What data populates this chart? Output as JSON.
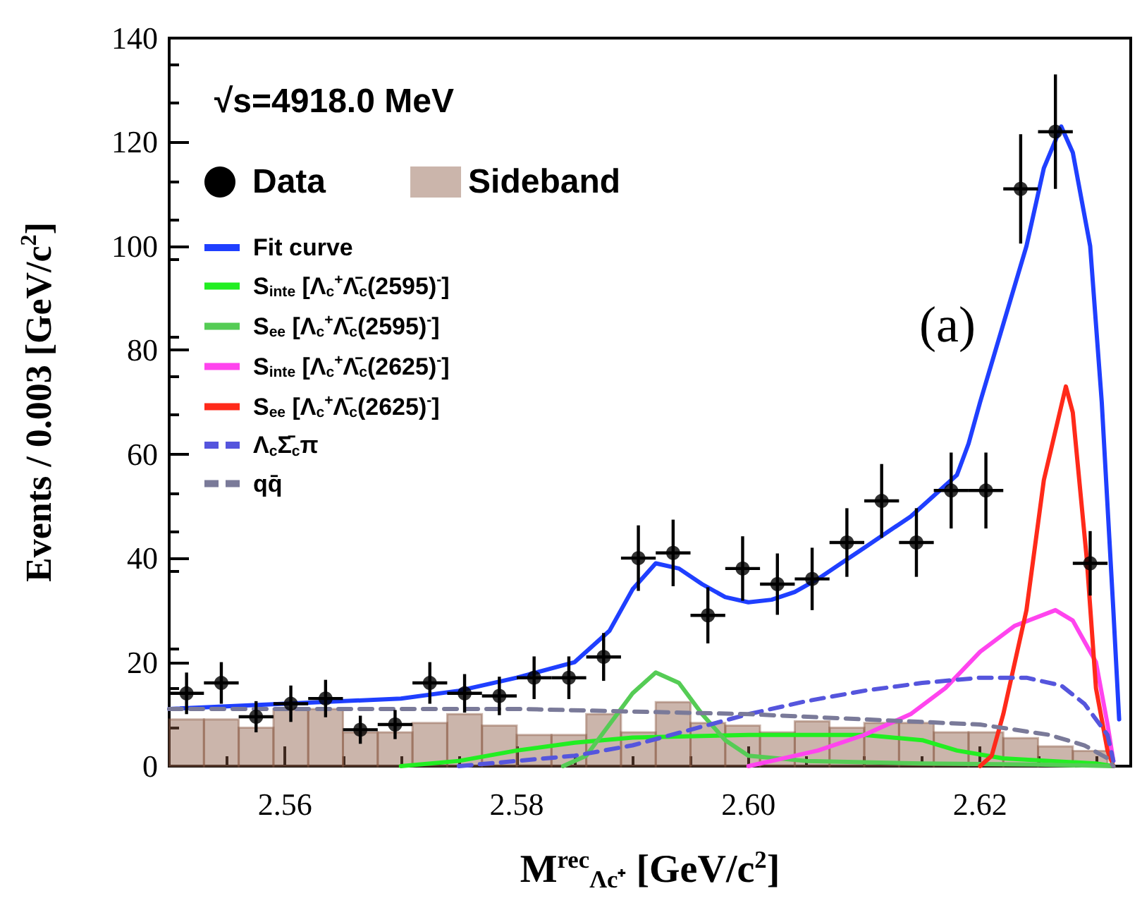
{
  "chart_data": {
    "type": "scatter",
    "xlabel": "M$^{rec}$$_{Λc⁺}$ [GeV/c$^{2}$]",
    "ylabel": "Events / 0.003 [GeV/c$^{2}$]",
    "annotations": [
      "√s=4918.0 MeV",
      "(a)"
    ],
    "xlim": [
      2.55,
      2.633
    ],
    "xticks": [
      2.56,
      2.58,
      {
        "value": 2.6,
        "label": "2.60"
      },
      2.62
    ],
    "ylim": [
      0,
      140
    ],
    "yticks": [
      0,
      20,
      40,
      60,
      80,
      100,
      120,
      140
    ],
    "legend": "top left",
    "grid": false,
    "series": [
      {
        "name": "Data",
        "color": "#000000",
        "marker": "circle",
        "x": [
          2.5515,
          2.5545,
          2.5575,
          2.5605,
          2.5635,
          2.5665,
          2.5695,
          2.5725,
          2.5755,
          2.5785,
          2.5815,
          2.5845,
          2.5875,
          2.5905,
          2.5935,
          2.5965,
          2.5995,
          2.6025,
          2.6055,
          2.6085,
          2.6115,
          2.6145,
          2.6175,
          2.6205,
          2.6235,
          2.6265,
          2.6295
        ],
        "values": [
          14,
          16,
          9.5,
          12,
          13,
          7,
          8,
          16,
          14,
          13.5,
          17,
          17,
          21,
          40,
          41,
          29,
          38,
          35,
          36,
          43,
          51,
          43,
          53,
          53,
          111,
          122,
          39
        ],
        "errors": [
          4,
          4,
          3,
          3.5,
          3.6,
          2.7,
          2.8,
          4,
          3.7,
          3.7,
          4.1,
          4.1,
          4.6,
          6.3,
          6.4,
          5.4,
          6.2,
          5.9,
          6,
          6.6,
          7.1,
          6.6,
          7.3,
          7.3,
          10.5,
          11,
          6.2
        ],
        "xerrors": [
          0.0015,
          0.0015,
          0.0015,
          0.0015,
          0.0015,
          0.0015,
          0.0015,
          0.0015,
          0.0015,
          0.0015,
          0.0015,
          0.0015,
          0.0015,
          0.0015,
          0.0015,
          0.0015,
          0.0015,
          0.0015,
          0.0015,
          0.0015,
          0.0015,
          0.0015,
          0.0015,
          0.0015,
          0.0015,
          0.0015,
          0.0015
        ]
      },
      {
        "name": "Sideband",
        "type": "bar",
        "color": "#8b5a45",
        "x": [
          2.5515,
          2.5545,
          2.5575,
          2.5605,
          2.5635,
          2.5665,
          2.5695,
          2.5725,
          2.5755,
          2.5785,
          2.5815,
          2.5845,
          2.5875,
          2.5905,
          2.5935,
          2.5965,
          2.5995,
          2.6025,
          2.6055,
          2.6085,
          2.6115,
          2.6145,
          2.6175,
          2.6205,
          2.6235,
          2.6265,
          2.6295
        ],
        "values": [
          9,
          9,
          7.4,
          11,
          11,
          6.5,
          6.5,
          8.3,
          10,
          7.8,
          6,
          6,
          10,
          6.5,
          12.3,
          8.3,
          7.8,
          6.5,
          8.6,
          7.4,
          8.3,
          8.3,
          6.5,
          6.5,
          5.4,
          3.8,
          2.9
        ]
      },
      {
        "name": "Fit curve",
        "type": "line",
        "color": "#1f3fff",
        "line_style": "solid",
        "x": [
          2.55,
          2.56,
          2.57,
          2.575,
          2.58,
          2.585,
          2.588,
          2.59,
          2.592,
          2.594,
          2.596,
          2.598,
          2.6,
          2.602,
          2.604,
          2.606,
          2.608,
          2.61,
          2.612,
          2.614,
          2.616,
          2.618,
          2.619,
          2.62,
          2.622,
          2.624,
          2.6255,
          2.627,
          2.628,
          2.6295,
          2.6305,
          2.6315,
          2.632
        ],
        "values": [
          11,
          12,
          13,
          14.5,
          17,
          20,
          26,
          34,
          39,
          38,
          35,
          32.5,
          31.5,
          32,
          33.5,
          36,
          39,
          42,
          45,
          48,
          52,
          56,
          62,
          70,
          85,
          100,
          115,
          123,
          118,
          100,
          70,
          30,
          9
        ]
      },
      {
        "name": "S$_{inte}$ [Λ$_{c}$$^{+}$Λ̄$_{c}$(2595)$^{-}$]",
        "type": "line",
        "color": "#22ee22",
        "line_style": "solid",
        "x": [
          2.57,
          2.575,
          2.58,
          2.585,
          2.59,
          2.6,
          2.61,
          2.615,
          2.618,
          2.622,
          2.626,
          2.63,
          2.6315
        ],
        "values": [
          0,
          1,
          3,
          4.5,
          5.5,
          6,
          6,
          5,
          3,
          1.5,
          1,
          0.5,
          0
        ]
      },
      {
        "name": "S$_{ee}$ [Λ$_{c}$$^{+}$Λ̄$_{c}$(2595)$^{-}$]",
        "type": "line",
        "color": "#55cc55",
        "line_style": "solid",
        "x": [
          2.584,
          2.586,
          2.588,
          2.59,
          2.592,
          2.594,
          2.596,
          2.598,
          2.6,
          2.605,
          2.615,
          2.625,
          2.6315
        ],
        "values": [
          0,
          2,
          8,
          14,
          18,
          16,
          10,
          5,
          2,
          1,
          0.5,
          0.3,
          0
        ]
      },
      {
        "name": "S$_{inte}$ [Λ$_{c}$$^{+}$Λ̄$_{c}$(2625)$^{-}$]",
        "type": "line",
        "color": "#ff44ee",
        "line_style": "solid",
        "x": [
          2.6,
          2.602,
          2.606,
          2.61,
          2.614,
          2.617,
          2.62,
          2.623,
          2.6265,
          2.628,
          2.63,
          2.631,
          2.6315
        ],
        "values": [
          0,
          1,
          3,
          6,
          10,
          15,
          22,
          27,
          30,
          28,
          20,
          8,
          1
        ]
      },
      {
        "name": "S$_{ee}$ [Λ$_{c}$$^{+}$Λ̄$_{c}$(2625)$^{-}$]",
        "type": "line",
        "color": "#ff2a1a",
        "line_style": "solid",
        "x": [
          2.62,
          2.621,
          2.622,
          2.624,
          2.6255,
          2.6274,
          2.628,
          2.6292,
          2.63,
          2.631,
          2.6315
        ],
        "values": [
          0,
          2,
          10,
          30,
          55,
          73,
          68,
          40,
          15,
          3,
          0
        ]
      },
      {
        "name": "Λ$_{c}$Σ̄$_{c}$π",
        "type": "line",
        "color": "#5555dd",
        "line_style": "dashed",
        "x": [
          2.575,
          2.58,
          2.585,
          2.59,
          2.595,
          2.6,
          2.605,
          2.61,
          2.615,
          2.62,
          2.624,
          2.627,
          2.629,
          2.631,
          2.6315
        ],
        "values": [
          0,
          1,
          2,
          4,
          7,
          10,
          12.5,
          14.5,
          16,
          17,
          17,
          15.5,
          12,
          6,
          1
        ]
      },
      {
        "name": "qq̄",
        "type": "line",
        "color": "#7a7a99",
        "line_style": "dashed",
        "x": [
          2.55,
          2.58,
          2.59,
          2.6,
          2.61,
          2.62,
          2.626,
          2.629,
          2.631,
          2.6315
        ],
        "values": [
          11,
          11,
          10.5,
          10,
          9,
          8,
          6,
          4,
          1.5,
          0
        ]
      }
    ]
  }
}
